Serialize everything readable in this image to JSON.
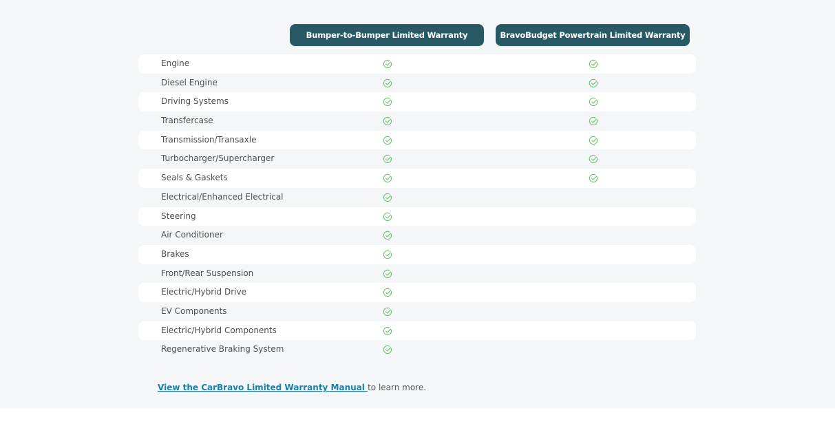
{
  "columns": [
    "Bumper-to-Bumper Limited Warranty",
    "BravoBudget Powertrain Limited Warranty"
  ],
  "check_color": "#6cc070",
  "rows": [
    {
      "label": "Engine",
      "covered": [
        true,
        true
      ]
    },
    {
      "label": "Diesel Engine",
      "covered": [
        true,
        true
      ]
    },
    {
      "label": "Driving Systems",
      "covered": [
        true,
        true
      ]
    },
    {
      "label": "Transfercase",
      "covered": [
        true,
        true
      ]
    },
    {
      "label": "Transmission/Transaxle",
      "covered": [
        true,
        true
      ]
    },
    {
      "label": "Turbocharger/Supercharger",
      "covered": [
        true,
        true
      ]
    },
    {
      "label": "Seals & Gaskets",
      "covered": [
        true,
        true
      ]
    },
    {
      "label": "Electrical/Enhanced Electrical",
      "covered": [
        true,
        false
      ]
    },
    {
      "label": "Steering",
      "covered": [
        true,
        false
      ]
    },
    {
      "label": "Air Conditioner",
      "covered": [
        true,
        false
      ]
    },
    {
      "label": "Brakes",
      "covered": [
        true,
        false
      ]
    },
    {
      "label": "Front/Rear Suspension",
      "covered": [
        true,
        false
      ]
    },
    {
      "label": "Electric/Hybrid Drive",
      "covered": [
        true,
        false
      ]
    },
    {
      "label": "EV Components",
      "covered": [
        true,
        false
      ]
    },
    {
      "label": "Electric/Hybrid Components",
      "covered": [
        true,
        false
      ]
    },
    {
      "label": "Regenerative Braking System",
      "covered": [
        true,
        false
      ]
    }
  ],
  "footer": {
    "link": "View the CarBravo Limited Warranty Manual ",
    "suffix": " to learn more."
  }
}
